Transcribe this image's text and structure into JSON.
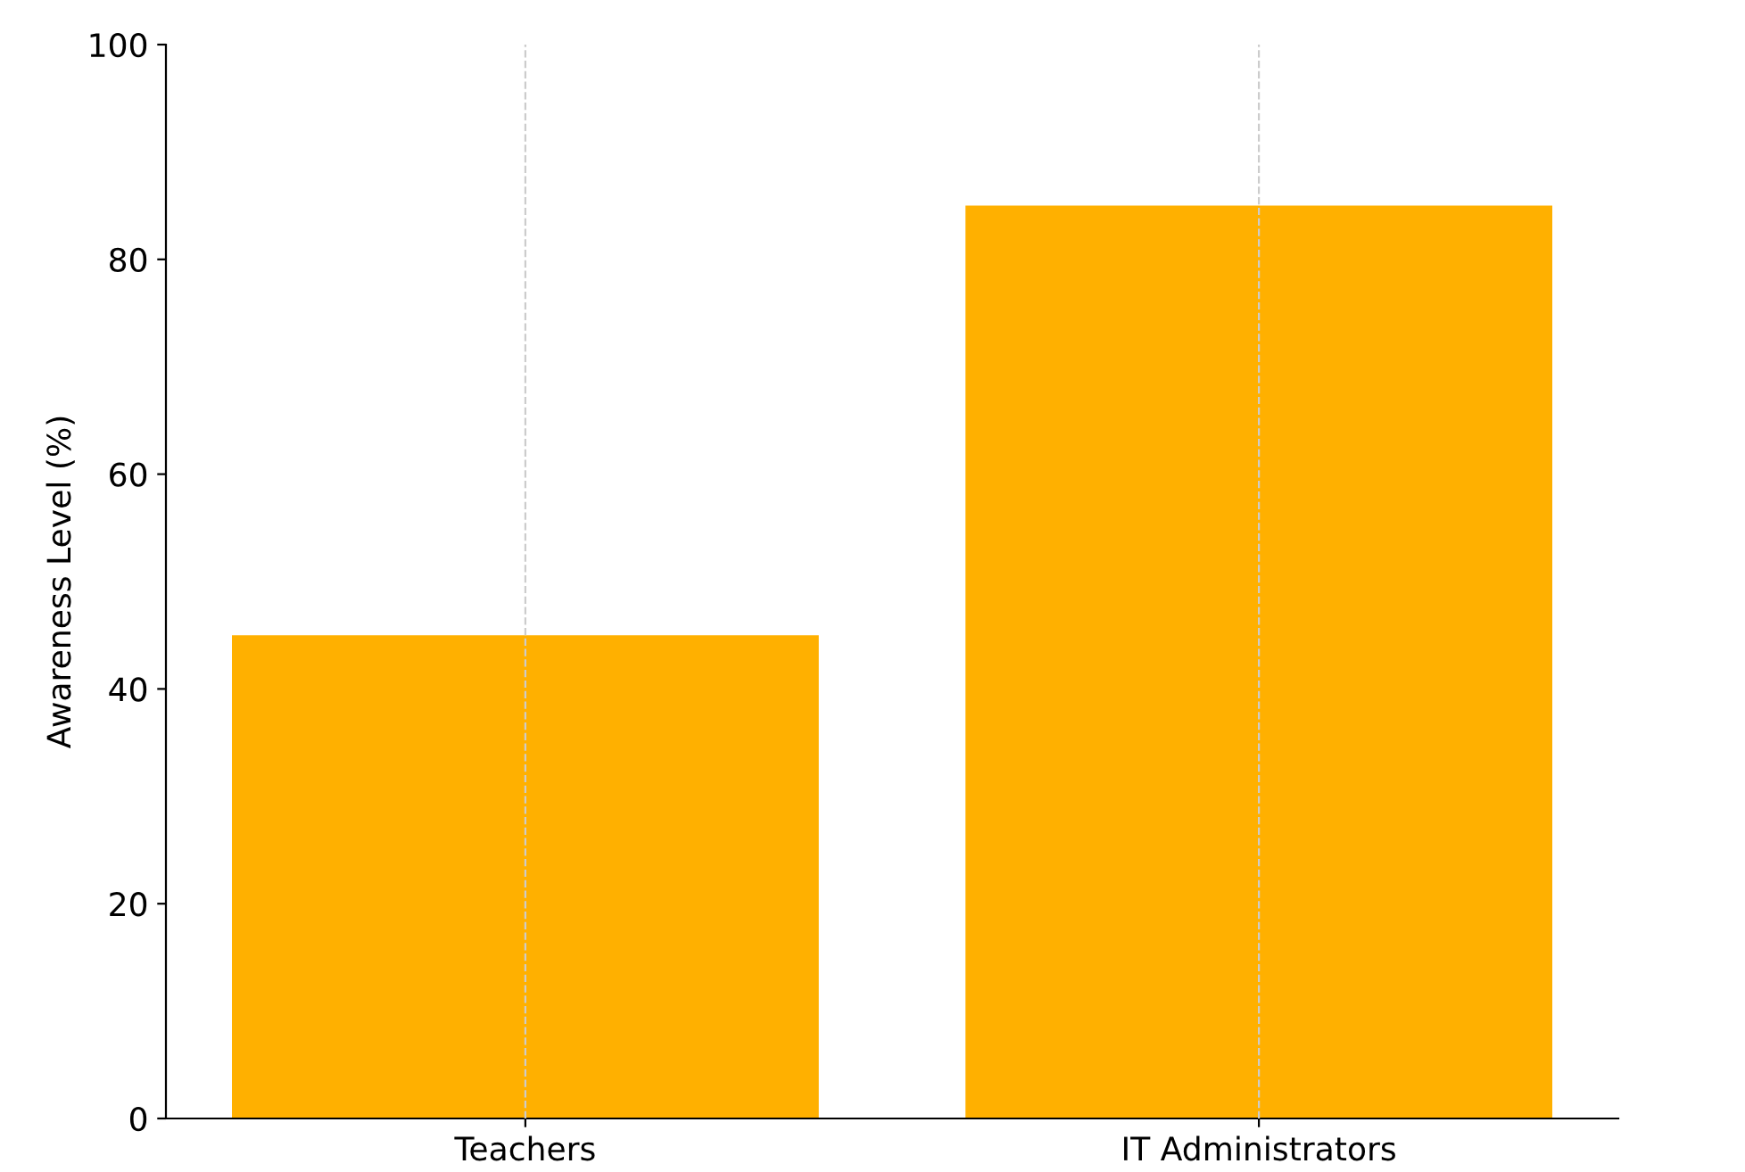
{
  "chart_data": {
    "type": "bar",
    "ylabel": "Awareness Level (%)",
    "categories": [
      "Teachers",
      "IT Administrators"
    ],
    "values": [
      45,
      85
    ],
    "color": "#ffb000",
    "ylim": [
      0,
      100
    ],
    "yticks": [
      0,
      20,
      40,
      60,
      80,
      100
    ],
    "grid": "x"
  }
}
